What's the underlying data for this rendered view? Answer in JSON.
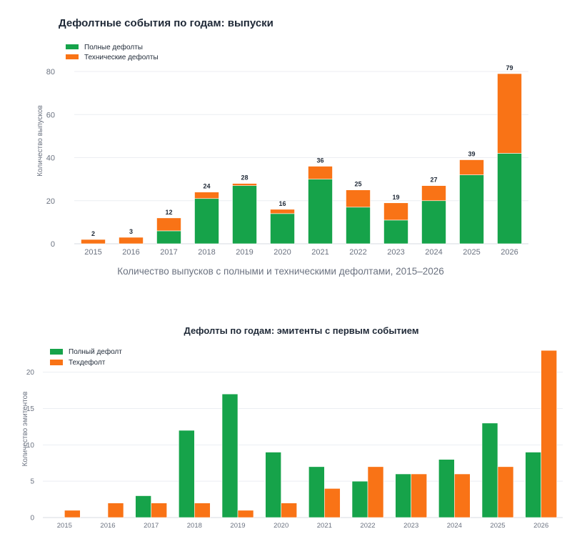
{
  "chart_data": [
    {
      "type": "bar",
      "stacked": true,
      "title": "Дефолтные события по годам: выпуски",
      "subtitle": "Количество выпусков с полными и техническими дефолтами, 2015–2026",
      "xlabel": "",
      "ylabel": "Количество выпусков",
      "ylim": [
        0,
        80
      ],
      "yticks": [
        "0",
        "20",
        "40",
        "60",
        "80"
      ],
      "grid": true,
      "legend_position": "top-left",
      "categories": [
        "2015",
        "2016",
        "2017",
        "2018",
        "2019",
        "2020",
        "2021",
        "2022",
        "2023",
        "2024",
        "2025",
        "2026"
      ],
      "series": [
        {
          "name": "Полные дефолты",
          "color": "#16a34a",
          "values": [
            0,
            0,
            6,
            21,
            27,
            14,
            30,
            17,
            11,
            20,
            32,
            42
          ]
        },
        {
          "name": "Технические дефолты",
          "color": "#f97316",
          "values": [
            2,
            3,
            6,
            3,
            1,
            2,
            6,
            8,
            8,
            7,
            7,
            37
          ]
        }
      ],
      "totals": [
        "2",
        "3",
        "12",
        "24",
        "28",
        "16",
        "36",
        "25",
        "19",
        "27",
        "39",
        "79"
      ]
    },
    {
      "type": "bar",
      "stacked": false,
      "title": "Дефолты по годам: эмитенты с первым событием",
      "xlabel": "",
      "ylabel": "Количество эмитентов",
      "ylim": [
        0,
        24
      ],
      "yticks": [
        "0",
        "5",
        "10",
        "15",
        "20"
      ],
      "grid": true,
      "legend_position": "top-left",
      "categories": [
        "2015",
        "2016",
        "2017",
        "2018",
        "2019",
        "2020",
        "2021",
        "2022",
        "2023",
        "2024",
        "2025",
        "2026"
      ],
      "series": [
        {
          "name": "Полный дефолт",
          "color": "#16a34a",
          "values": [
            0,
            0,
            3,
            12,
            17,
            9,
            7,
            5,
            6,
            8,
            13,
            9
          ]
        },
        {
          "name": "Техдефолт",
          "color": "#f97316",
          "values": [
            1,
            2,
            2,
            2,
            1,
            2,
            4,
            7,
            6,
            6,
            7,
            23
          ]
        }
      ]
    }
  ]
}
